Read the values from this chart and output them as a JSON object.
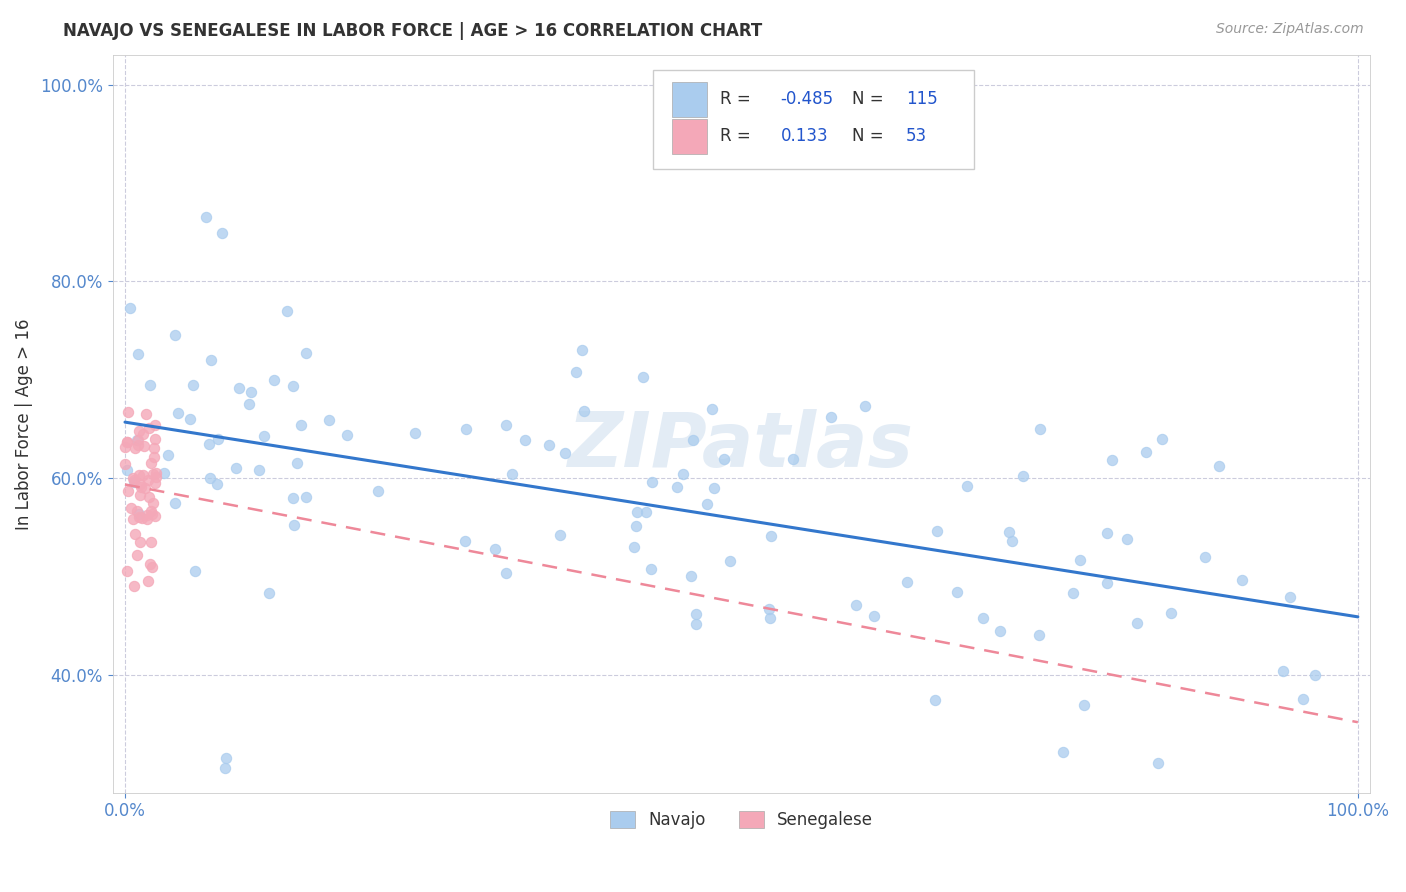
{
  "title": "NAVAJO VS SENEGALESE IN LABOR FORCE | AGE > 16 CORRELATION CHART",
  "source_text": "Source: ZipAtlas.com",
  "ylabel": "In Labor Force | Age > 16",
  "navajo_R": -0.485,
  "navajo_N": 115,
  "senegalese_R": 0.133,
  "senegalese_N": 53,
  "navajo_color": "#aaccee",
  "senegalese_color": "#f4a8b8",
  "navajo_line_color": "#3377cc",
  "senegalese_line_color": "#ee8899",
  "watermark": "ZIPatlas",
  "background_color": "#ffffff",
  "grid_color": "#ccccdd",
  "ylim": [
    0.28,
    1.03
  ],
  "xlim": [
    -0.01,
    1.01
  ],
  "yticks": [
    0.4,
    0.6,
    0.8,
    1.0
  ],
  "xticks": [
    0.0,
    1.0
  ],
  "tick_color": "#5588cc",
  "title_color": "#333333",
  "source_color": "#999999",
  "ylabel_color": "#333333"
}
